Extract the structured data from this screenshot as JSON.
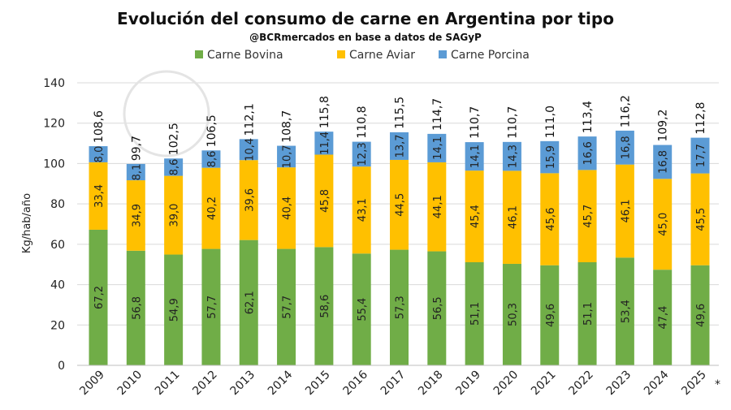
{
  "chart_data": {
    "type": "bar",
    "stacked": true,
    "title": "Evolución del consumo de carne en Argentina por tipo",
    "subtitle": "@BCRmercados en base a datos de SAGyP",
    "ylabel": "Kg/hab/año",
    "xlabel": "",
    "ylim": [
      0,
      140
    ],
    "yticks": [
      0,
      20,
      40,
      60,
      80,
      100,
      120,
      140
    ],
    "grid": true,
    "legend_position": "top",
    "footnote_marker": "*",
    "categories": [
      "2009",
      "2010",
      "2011",
      "2012",
      "2013",
      "2014",
      "2015",
      "2016",
      "2017",
      "2018",
      "2019",
      "2020",
      "2021",
      "2022",
      "2023",
      "2024",
      "2025"
    ],
    "series": [
      {
        "name": "Carne Bovina",
        "color": "#70ad47",
        "values": [
          67.2,
          56.8,
          54.9,
          57.7,
          62.1,
          57.7,
          58.6,
          55.4,
          57.3,
          56.5,
          51.1,
          50.3,
          49.6,
          51.1,
          53.4,
          47.4,
          49.6
        ],
        "labels": [
          "67,2",
          "56,8",
          "54,9",
          "57,7",
          "62,1",
          "57,7",
          "58,6",
          "55,4",
          "57,3",
          "56,5",
          "51,1",
          "50,3",
          "49,6",
          "51,1",
          "53,4",
          "47,4",
          "49,6"
        ]
      },
      {
        "name": "Carne Aviar",
        "color": "#ffc000",
        "values": [
          33.4,
          34.9,
          39.0,
          40.2,
          39.6,
          40.4,
          45.8,
          43.1,
          44.5,
          44.1,
          45.4,
          46.1,
          45.6,
          45.7,
          46.1,
          45.0,
          45.5
        ],
        "labels": [
          "33,4",
          "34,9",
          "39,0",
          "40,2",
          "39,6",
          "40,4",
          "45,8",
          "43,1",
          "44,5",
          "44,1",
          "45,4",
          "46,1",
          "45,6",
          "45,7",
          "46,1",
          "45,0",
          "45,5"
        ]
      },
      {
        "name": "Carne Porcina",
        "color": "#5b9bd5",
        "values": [
          8.0,
          8.1,
          8.6,
          8.6,
          10.4,
          10.7,
          11.4,
          12.3,
          13.7,
          14.1,
          14.1,
          14.3,
          15.9,
          16.6,
          16.8,
          16.8,
          17.7
        ],
        "labels": [
          "8,0",
          "8,1",
          "8,6",
          "8,6",
          "10,4",
          "10,7",
          "11,4",
          "12,3",
          "13,7",
          "14,1",
          "14,1",
          "14,3",
          "15,9",
          "16,6",
          "16,8",
          "16,8",
          "17,7"
        ]
      }
    ],
    "totals": [
      108.6,
      99.7,
      102.5,
      106.5,
      112.1,
      108.7,
      115.8,
      110.8,
      115.5,
      114.7,
      110.7,
      110.7,
      111.0,
      113.4,
      116.2,
      109.2,
      112.8
    ],
    "total_labels": [
      "108,6",
      "99,7",
      "102,5",
      "106,5",
      "112,1",
      "108,7",
      "115,8",
      "110,8",
      "115,5",
      "114,7",
      "110,7",
      "110,7",
      "111,0",
      "113,4",
      "116,2",
      "109,2",
      "112,8"
    ]
  }
}
